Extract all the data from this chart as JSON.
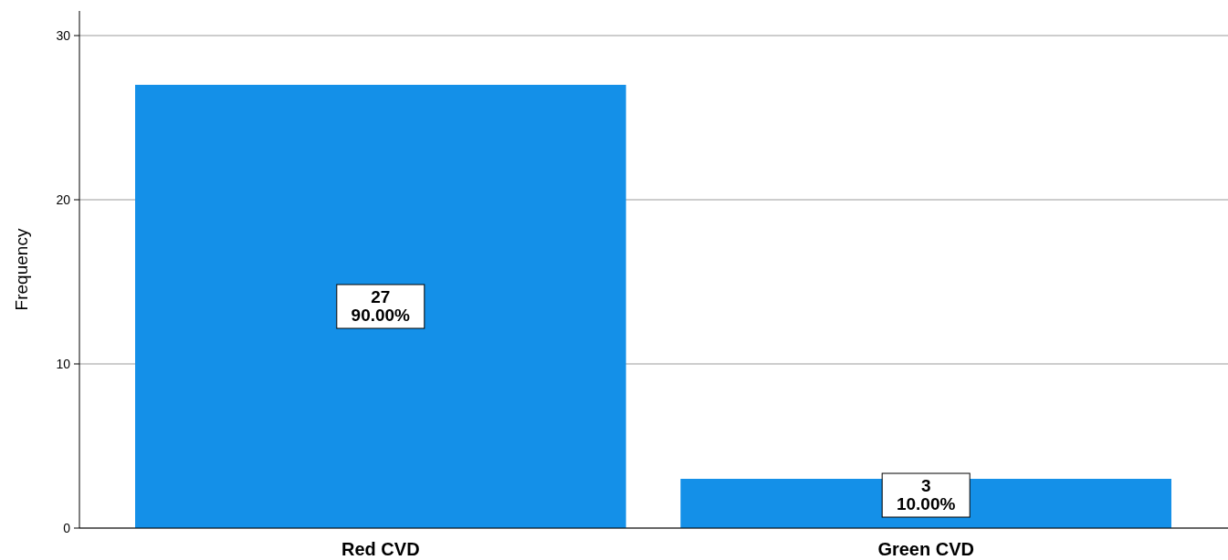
{
  "chart_data": {
    "type": "bar",
    "ylabel": "Frequency",
    "categories": [
      "Red CVD",
      "Green CVD"
    ],
    "values": [
      27,
      3
    ],
    "color": "#1490e8",
    "value_labels": [
      "27\n90.00%",
      "3\n10.00%"
    ],
    "ylim": [
      0,
      31.5
    ],
    "yticks": [
      0,
      10,
      20,
      30
    ],
    "grid": "y"
  }
}
